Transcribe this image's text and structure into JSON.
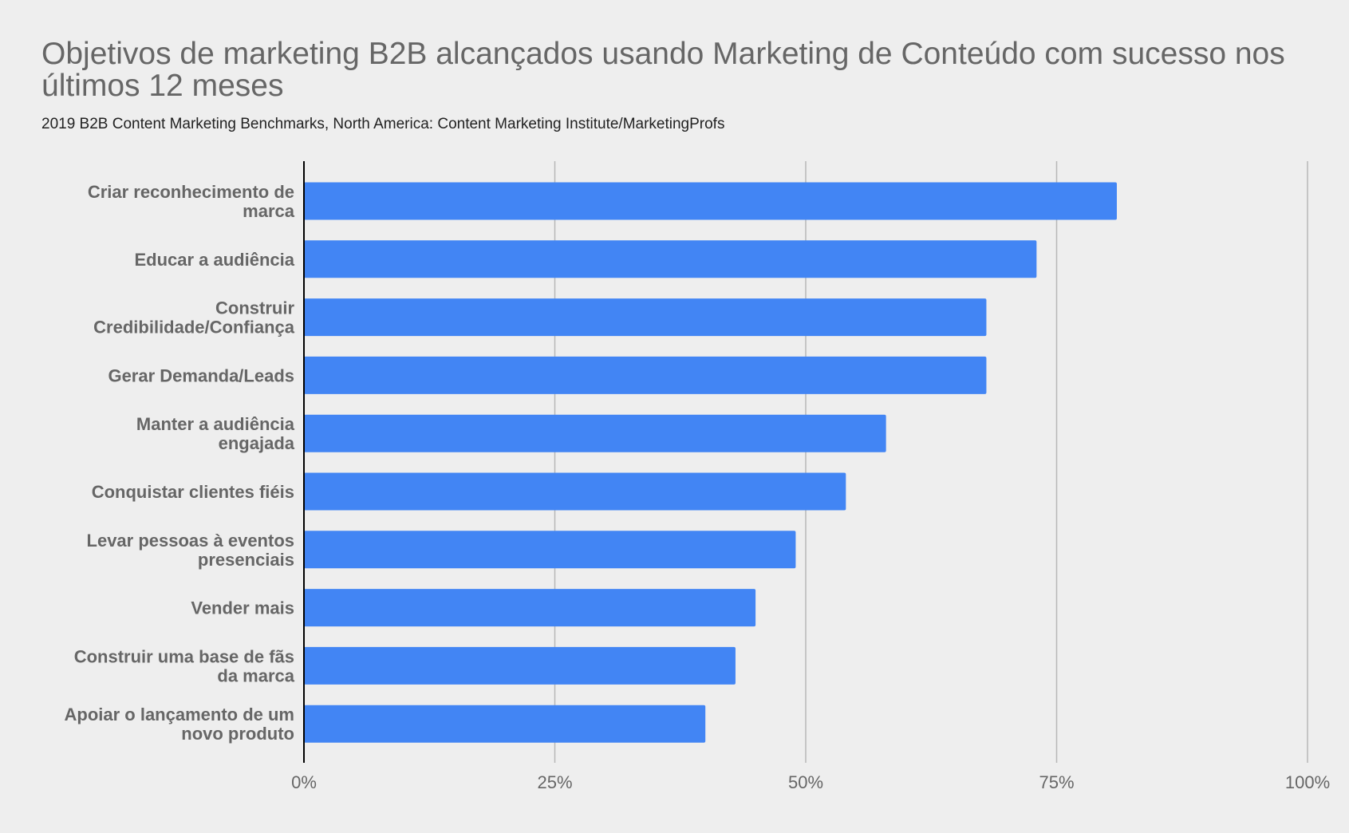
{
  "chart_data": {
    "type": "bar",
    "orientation": "horizontal",
    "title": "Objetivos de marketing B2B alcançados usando Marketing de Conteúdo com sucesso nos últimos 12 meses",
    "subtitle": "2019 B2B Content Marketing Benchmarks, North America: Content Marketing Institute/MarketingProfs",
    "xlabel": "",
    "ylabel": "",
    "xlim": [
      0,
      1
    ],
    "ticks": [
      0,
      0.25,
      0.5,
      0.75,
      1
    ],
    "tick_labels": [
      "0%",
      "25%",
      "50%",
      "75%",
      "100%"
    ],
    "grid": true,
    "legend": "none",
    "categories": [
      "Criar reconhecimento de marca",
      "Educar a audiência",
      "Construir Credibilidade/Confiança",
      "Gerar Demanda/Leads",
      "Manter a audiência engajada",
      "Conquistar clientes fiéis",
      "Levar pessoas à eventos presenciais",
      "Vender mais",
      "Construir uma base de fãs da marca",
      "Apoiar o lançamento de um novo produto"
    ],
    "category_label_lines": [
      [
        "Criar reconhecimento de",
        "marca"
      ],
      [
        "Educar a audiência"
      ],
      [
        "Construir",
        "Credibilidade/Confiança"
      ],
      [
        "Gerar Demanda/Leads"
      ],
      [
        "Manter a audiência",
        "engajada"
      ],
      [
        "Conquistar clientes fiéis"
      ],
      [
        "Levar pessoas à eventos",
        "presenciais"
      ],
      [
        "Vender mais"
      ],
      [
        "Construir uma base de fãs",
        "da marca"
      ],
      [
        "Apoiar o lançamento de um",
        "novo produto"
      ]
    ],
    "values": [
      0.81,
      0.73,
      0.68,
      0.68,
      0.58,
      0.54,
      0.49,
      0.45,
      0.43,
      0.4
    ],
    "colors": {
      "bar": "#4285f4",
      "gridline": "#b7b7b7",
      "axis": "#000000",
      "label": "#666666"
    }
  }
}
